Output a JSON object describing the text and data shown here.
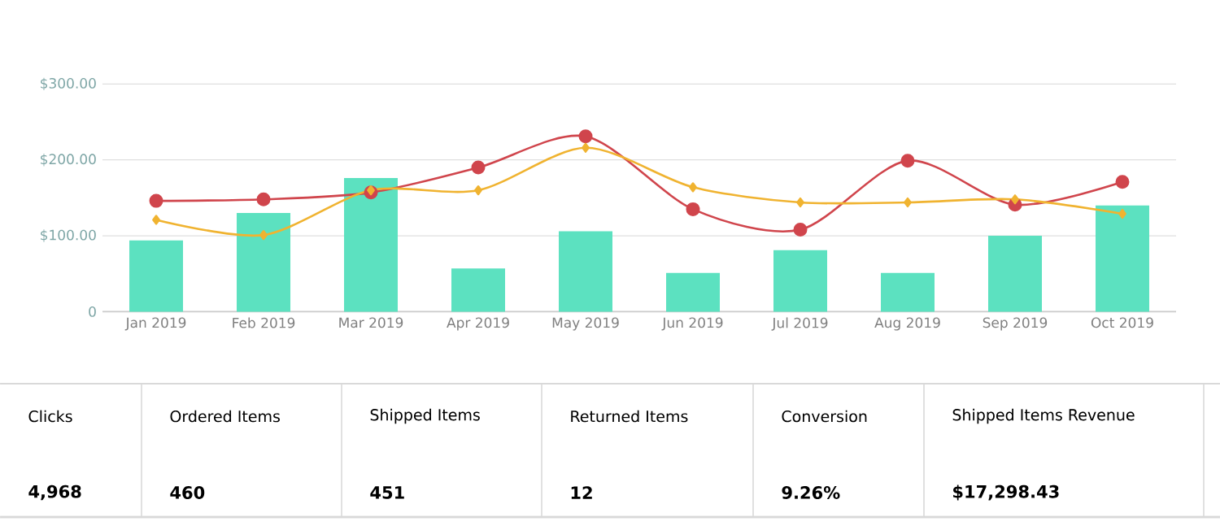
{
  "chart_data": [
    {
      "type": "bar",
      "categories": [
        "Jan 2019",
        "Feb 2019",
        "Mar 2019",
        "Apr 2019",
        "May 2019",
        "Jun 2019",
        "Jul 2019",
        "Aug 2019",
        "Sep 2019",
        "Oct 2019"
      ],
      "series": [
        {
          "type": "bar",
          "color": "#5ce1c0",
          "values": [
            94,
            130,
            176,
            57,
            106,
            51,
            81,
            51,
            100,
            140
          ]
        },
        {
          "type": "line",
          "color": "#d0454c",
          "marker": "circle",
          "values": [
            146,
            148,
            157,
            190,
            231,
            135,
            108,
            199,
            141,
            171
          ]
        },
        {
          "type": "line",
          "color": "#f0b330",
          "marker": "diamond",
          "values": [
            121,
            101,
            160,
            160,
            216,
            164,
            144,
            144,
            148,
            129
          ]
        }
      ],
      "ylim": [
        0,
        300
      ],
      "yticks": [
        0,
        {
          "value": 100,
          "label": "$100.00"
        },
        {
          "value": 200,
          "label": "$200.00"
        },
        {
          "value": 300,
          "label": "$300.00"
        }
      ],
      "grid": "y"
    },
    {
      "type": "other",
      "annotations": [
        "Clicks",
        "4,968",
        "Ordered Items",
        "460",
        "Shipped Items",
        "451",
        "Returned Items",
        "12",
        "Conversion",
        "9.26%",
        "Shipped Items Revenue",
        "$17,298.43"
      ]
    }
  ]
}
